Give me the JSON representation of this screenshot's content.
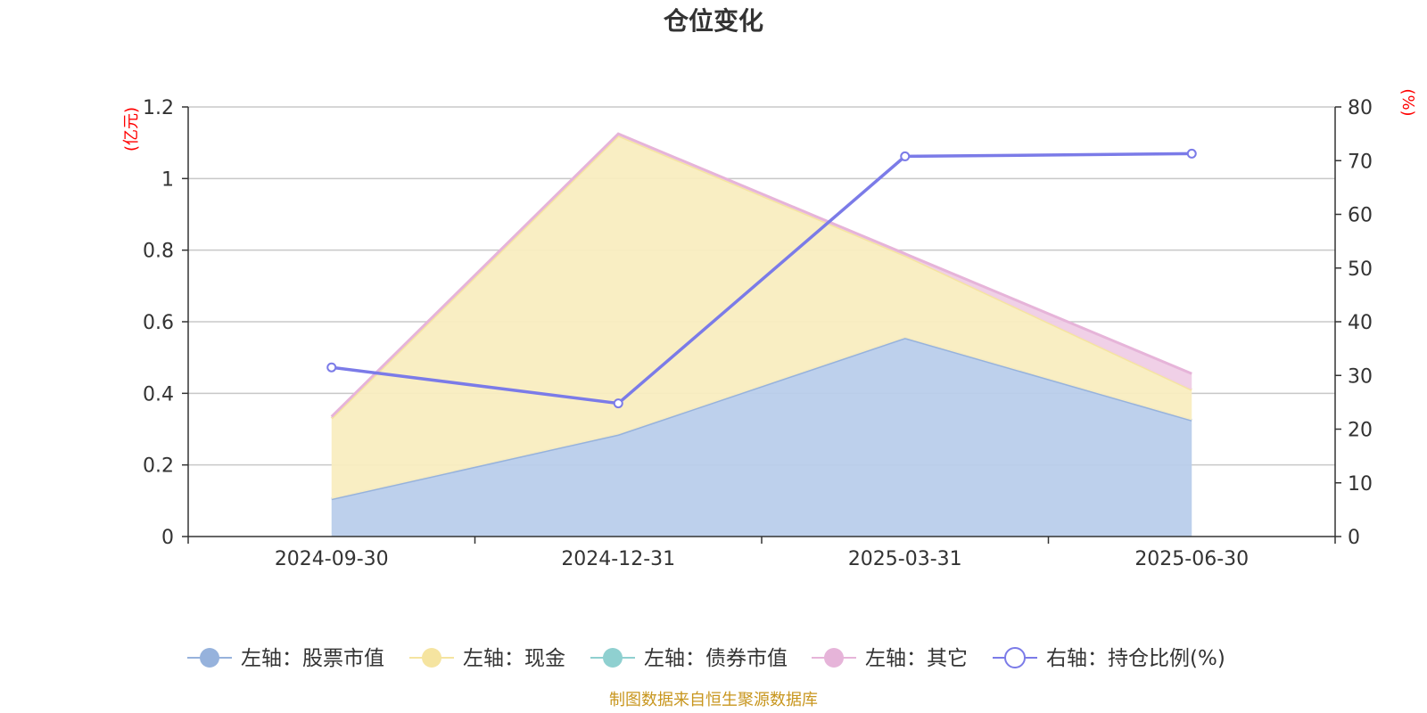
{
  "chart_data": {
    "type": "area",
    "title": "仓位变化",
    "categories": [
      "2024-09-30",
      "2024-12-31",
      "2025-03-31",
      "2025-06-30"
    ],
    "left_axis": {
      "unit": "(亿元)",
      "min": 0,
      "max": 1.2,
      "ticks": [
        "0",
        "0.2",
        "0.4",
        "0.6",
        "0.8",
        "1",
        "1.2"
      ]
    },
    "right_axis": {
      "unit": "(%)",
      "min": 0,
      "max": 80,
      "ticks": [
        "0",
        "10",
        "20",
        "30",
        "40",
        "50",
        "60",
        "70",
        "80"
      ]
    },
    "grid": true,
    "stacked": true,
    "series": [
      {
        "name": "左轴：股票市值",
        "axis": "left",
        "values": [
          0.105,
          0.285,
          0.555,
          0.325
        ],
        "line_color": "#96b2dc",
        "fill_color": "#b9cdeb"
      },
      {
        "name": "左轴：现金",
        "axis": "left",
        "values": [
          0.225,
          0.835,
          0.23,
          0.085
        ],
        "line_color": "#f5e4a0",
        "fill_color": "#f9edc0"
      },
      {
        "name": "左轴：债券市值",
        "axis": "left",
        "values": [
          0,
          0,
          0,
          0
        ],
        "line_color": "#8fd0d0",
        "fill_color": "#8fd0d0"
      },
      {
        "name": "左轴：其它",
        "axis": "left",
        "values": [
          0.005,
          0.005,
          0.005,
          0.045
        ],
        "line_color": "#e6b4d9",
        "fill_color": "#efcde6"
      },
      {
        "name": "右轴：持仓比例(%)",
        "axis": "right",
        "values": [
          31.5,
          24.8,
          70.8,
          71.3
        ],
        "line_color": "#7b7be8"
      }
    ],
    "legend": {
      "position": "bottom"
    },
    "source_note": "制图数据来自恒生聚源数据库"
  }
}
